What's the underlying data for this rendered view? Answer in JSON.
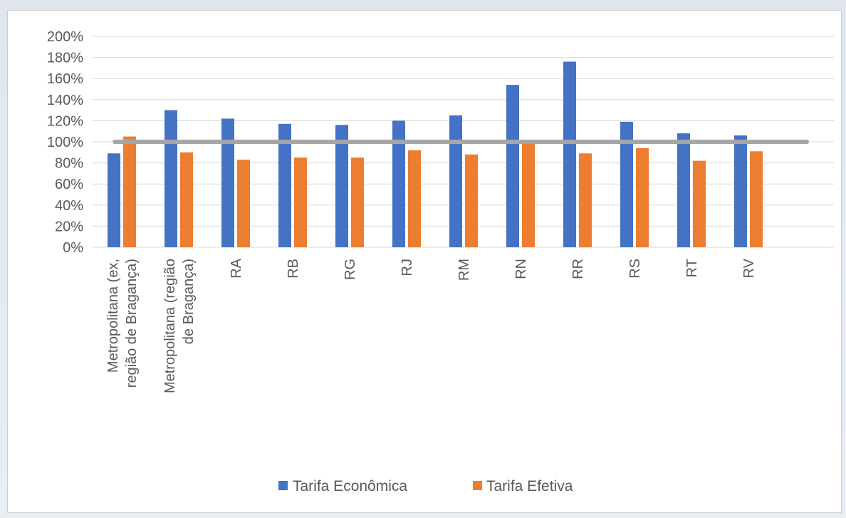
{
  "chart_data": {
    "type": "bar",
    "categories": [
      [
        "Metropolitana (ex,",
        "região de Bragança)"
      ],
      [
        "Metropolitana (região",
        "de Bragança)"
      ],
      [
        "RA"
      ],
      [
        "RB"
      ],
      [
        "RG"
      ],
      [
        "RJ"
      ],
      [
        "RM"
      ],
      [
        "RN"
      ],
      [
        "RR"
      ],
      [
        "RS"
      ],
      [
        "RT"
      ],
      [
        "RV"
      ]
    ],
    "series": [
      {
        "name": "Tarifa Econômica",
        "color": "#4472c4",
        "values": [
          89,
          130,
          122,
          117,
          116,
          120,
          125,
          154,
          176,
          119,
          108,
          106
        ]
      },
      {
        "name": "Tarifa Efetiva",
        "color": "#ed7d31",
        "values": [
          105,
          90,
          83,
          85,
          85,
          92,
          88,
          98,
          89,
          94,
          82,
          91
        ]
      }
    ],
    "reference_line": {
      "value": 100,
      "color": "#a6a6a6"
    },
    "y_ticks": [
      "0%",
      "20%",
      "40%",
      "60%",
      "80%",
      "100%",
      "120%",
      "140%",
      "160%",
      "180%",
      "200%"
    ],
    "ylim": [
      0,
      200
    ],
    "grid": true,
    "legend_position": "bottom"
  }
}
